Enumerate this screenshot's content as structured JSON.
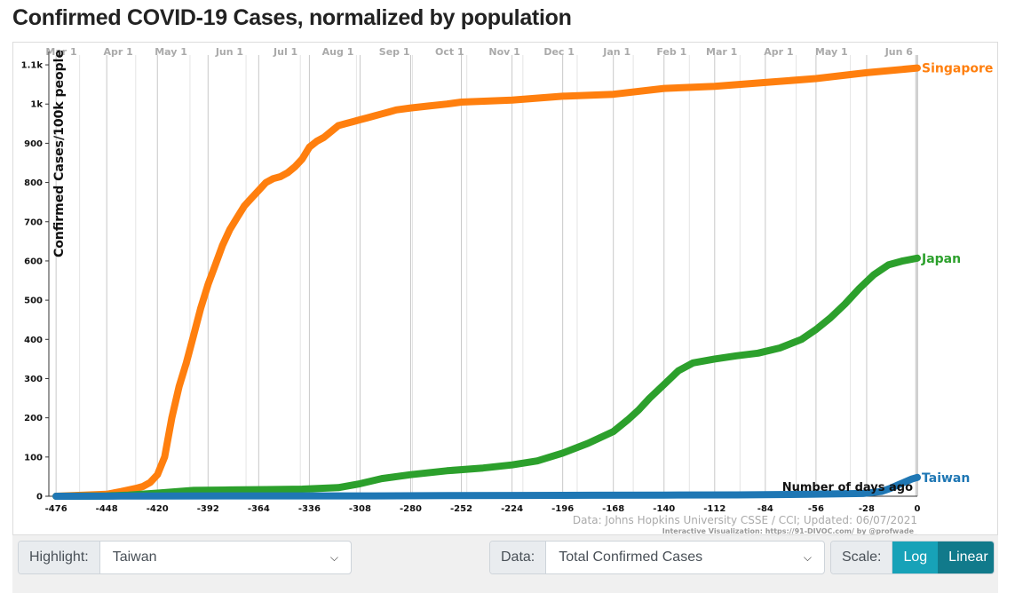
{
  "page": {
    "title": "Confirmed COVID-19 Cases, normalized by population"
  },
  "chart_data": {
    "type": "line",
    "ylabel": "Confirmed Cases/100k people",
    "xlabel": "Number of days ago",
    "xlim": [
      -480,
      0
    ],
    "ylim": [
      0,
      1125
    ],
    "grid": true,
    "x_ticks": [
      -476,
      -448,
      -420,
      -392,
      -364,
      -336,
      -308,
      -280,
      -252,
      -224,
      -196,
      -168,
      -140,
      -112,
      -84,
      -56,
      -28,
      0
    ],
    "x_tick_labels": [
      "-476",
      "-448",
      "-420",
      "-392",
      "-364",
      "-336",
      "-308",
      "-280",
      "-252",
      "-224",
      "-196",
      "-168",
      "-140",
      "-112",
      "-84",
      "-56",
      "-28",
      "0"
    ],
    "y_ticks": [
      0,
      100,
      200,
      300,
      400,
      500,
      600,
      700,
      800,
      900,
      1000,
      1100
    ],
    "y_tick_labels": [
      "0",
      "100",
      "200",
      "300",
      "400",
      "500",
      "600",
      "700",
      "800",
      "900",
      "1k",
      "1.1k"
    ],
    "top_axis": [
      {
        "label": "Mar 1",
        "x": -463
      },
      {
        "label": "Apr 1",
        "x": -432
      },
      {
        "label": "May 1",
        "x": -402
      },
      {
        "label": "Jun 1",
        "x": -371
      },
      {
        "label": "Jul 1",
        "x": -341
      },
      {
        "label": "Aug 1",
        "x": -310
      },
      {
        "label": "Sep 1",
        "x": -279
      },
      {
        "label": "Oct 1",
        "x": -249
      },
      {
        "label": "Nov 1",
        "x": -218
      },
      {
        "label": "Dec 1",
        "x": -188
      },
      {
        "label": "Jan 1",
        "x": -157
      },
      {
        "label": "Feb 1",
        "x": -126
      },
      {
        "label": "Mar 1",
        "x": -98
      },
      {
        "label": "Apr 1",
        "x": -67
      },
      {
        "label": "May 1",
        "x": -37
      },
      {
        "label": "Jun 6",
        "x": -1
      }
    ],
    "series": [
      {
        "name": "Singapore",
        "color": "#ff7f0e",
        "x": [
          -476,
          -448,
          -440,
          -432,
          -428,
          -424,
          -420,
          -416,
          -412,
          -408,
          -404,
          -400,
          -396,
          -392,
          -388,
          -384,
          -380,
          -376,
          -372,
          -368,
          -364,
          -360,
          -356,
          -352,
          -348,
          -344,
          -340,
          -336,
          -332,
          -328,
          -324,
          -320,
          -316,
          -312,
          -308,
          -304,
          -300,
          -296,
          -292,
          -288,
          -280,
          -270,
          -260,
          -252,
          -224,
          -196,
          -168,
          -140,
          -112,
          -84,
          -56,
          -28,
          0
        ],
        "y": [
          0,
          5,
          12,
          20,
          25,
          35,
          55,
          100,
          200,
          280,
          340,
          410,
          480,
          540,
          590,
          640,
          680,
          710,
          740,
          760,
          780,
          800,
          810,
          815,
          825,
          840,
          860,
          890,
          905,
          915,
          930,
          945,
          950,
          955,
          960,
          965,
          970,
          975,
          980,
          985,
          990,
          995,
          1000,
          1005,
          1010,
          1020,
          1025,
          1040,
          1045,
          1055,
          1065,
          1080,
          1092
        ]
      },
      {
        "name": "Japan",
        "color": "#2ca02c",
        "x": [
          -476,
          -448,
          -436,
          -420,
          -400,
          -380,
          -360,
          -340,
          -320,
          -308,
          -296,
          -280,
          -260,
          -240,
          -224,
          -210,
          -196,
          -182,
          -168,
          -160,
          -154,
          -148,
          -140,
          -132,
          -124,
          -112,
          -100,
          -88,
          -76,
          -64,
          -56,
          -48,
          -40,
          -32,
          -24,
          -16,
          -8,
          0
        ],
        "y": [
          0,
          1,
          3,
          8,
          15,
          16,
          17,
          18,
          22,
          32,
          45,
          55,
          65,
          72,
          80,
          90,
          110,
          135,
          165,
          195,
          220,
          250,
          285,
          320,
          340,
          350,
          358,
          365,
          378,
          400,
          425,
          455,
          490,
          530,
          565,
          590,
          600,
          607
        ]
      },
      {
        "name": "Taiwan",
        "color": "#1f77b4",
        "x": [
          -476,
          -440,
          -420,
          -380,
          -340,
          -300,
          -260,
          -220,
          -180,
          -140,
          -100,
          -60,
          -30,
          -20,
          -15,
          -10,
          -6,
          -3,
          0
        ],
        "y": [
          0,
          0.5,
          0.5,
          1,
          1,
          1,
          1.5,
          2,
          2.5,
          3,
          3.5,
          5,
          7,
          12,
          20,
          30,
          38,
          44,
          48
        ]
      }
    ],
    "annotations": [
      {
        "text": "Data: Johns Hopkins University CSSE / CCI; Updated: 06/07/2021"
      },
      {
        "text": "Interactive Visualization: https://91-DIVOC.com/ by @profwade_"
      }
    ]
  },
  "controls": {
    "highlight": {
      "label": "Highlight:",
      "value": "Taiwan"
    },
    "data": {
      "label": "Data:",
      "value": "Total Confirmed Cases"
    },
    "scale": {
      "label": "Scale:",
      "options": [
        "Log",
        "Linear"
      ],
      "selected": "Linear"
    }
  }
}
